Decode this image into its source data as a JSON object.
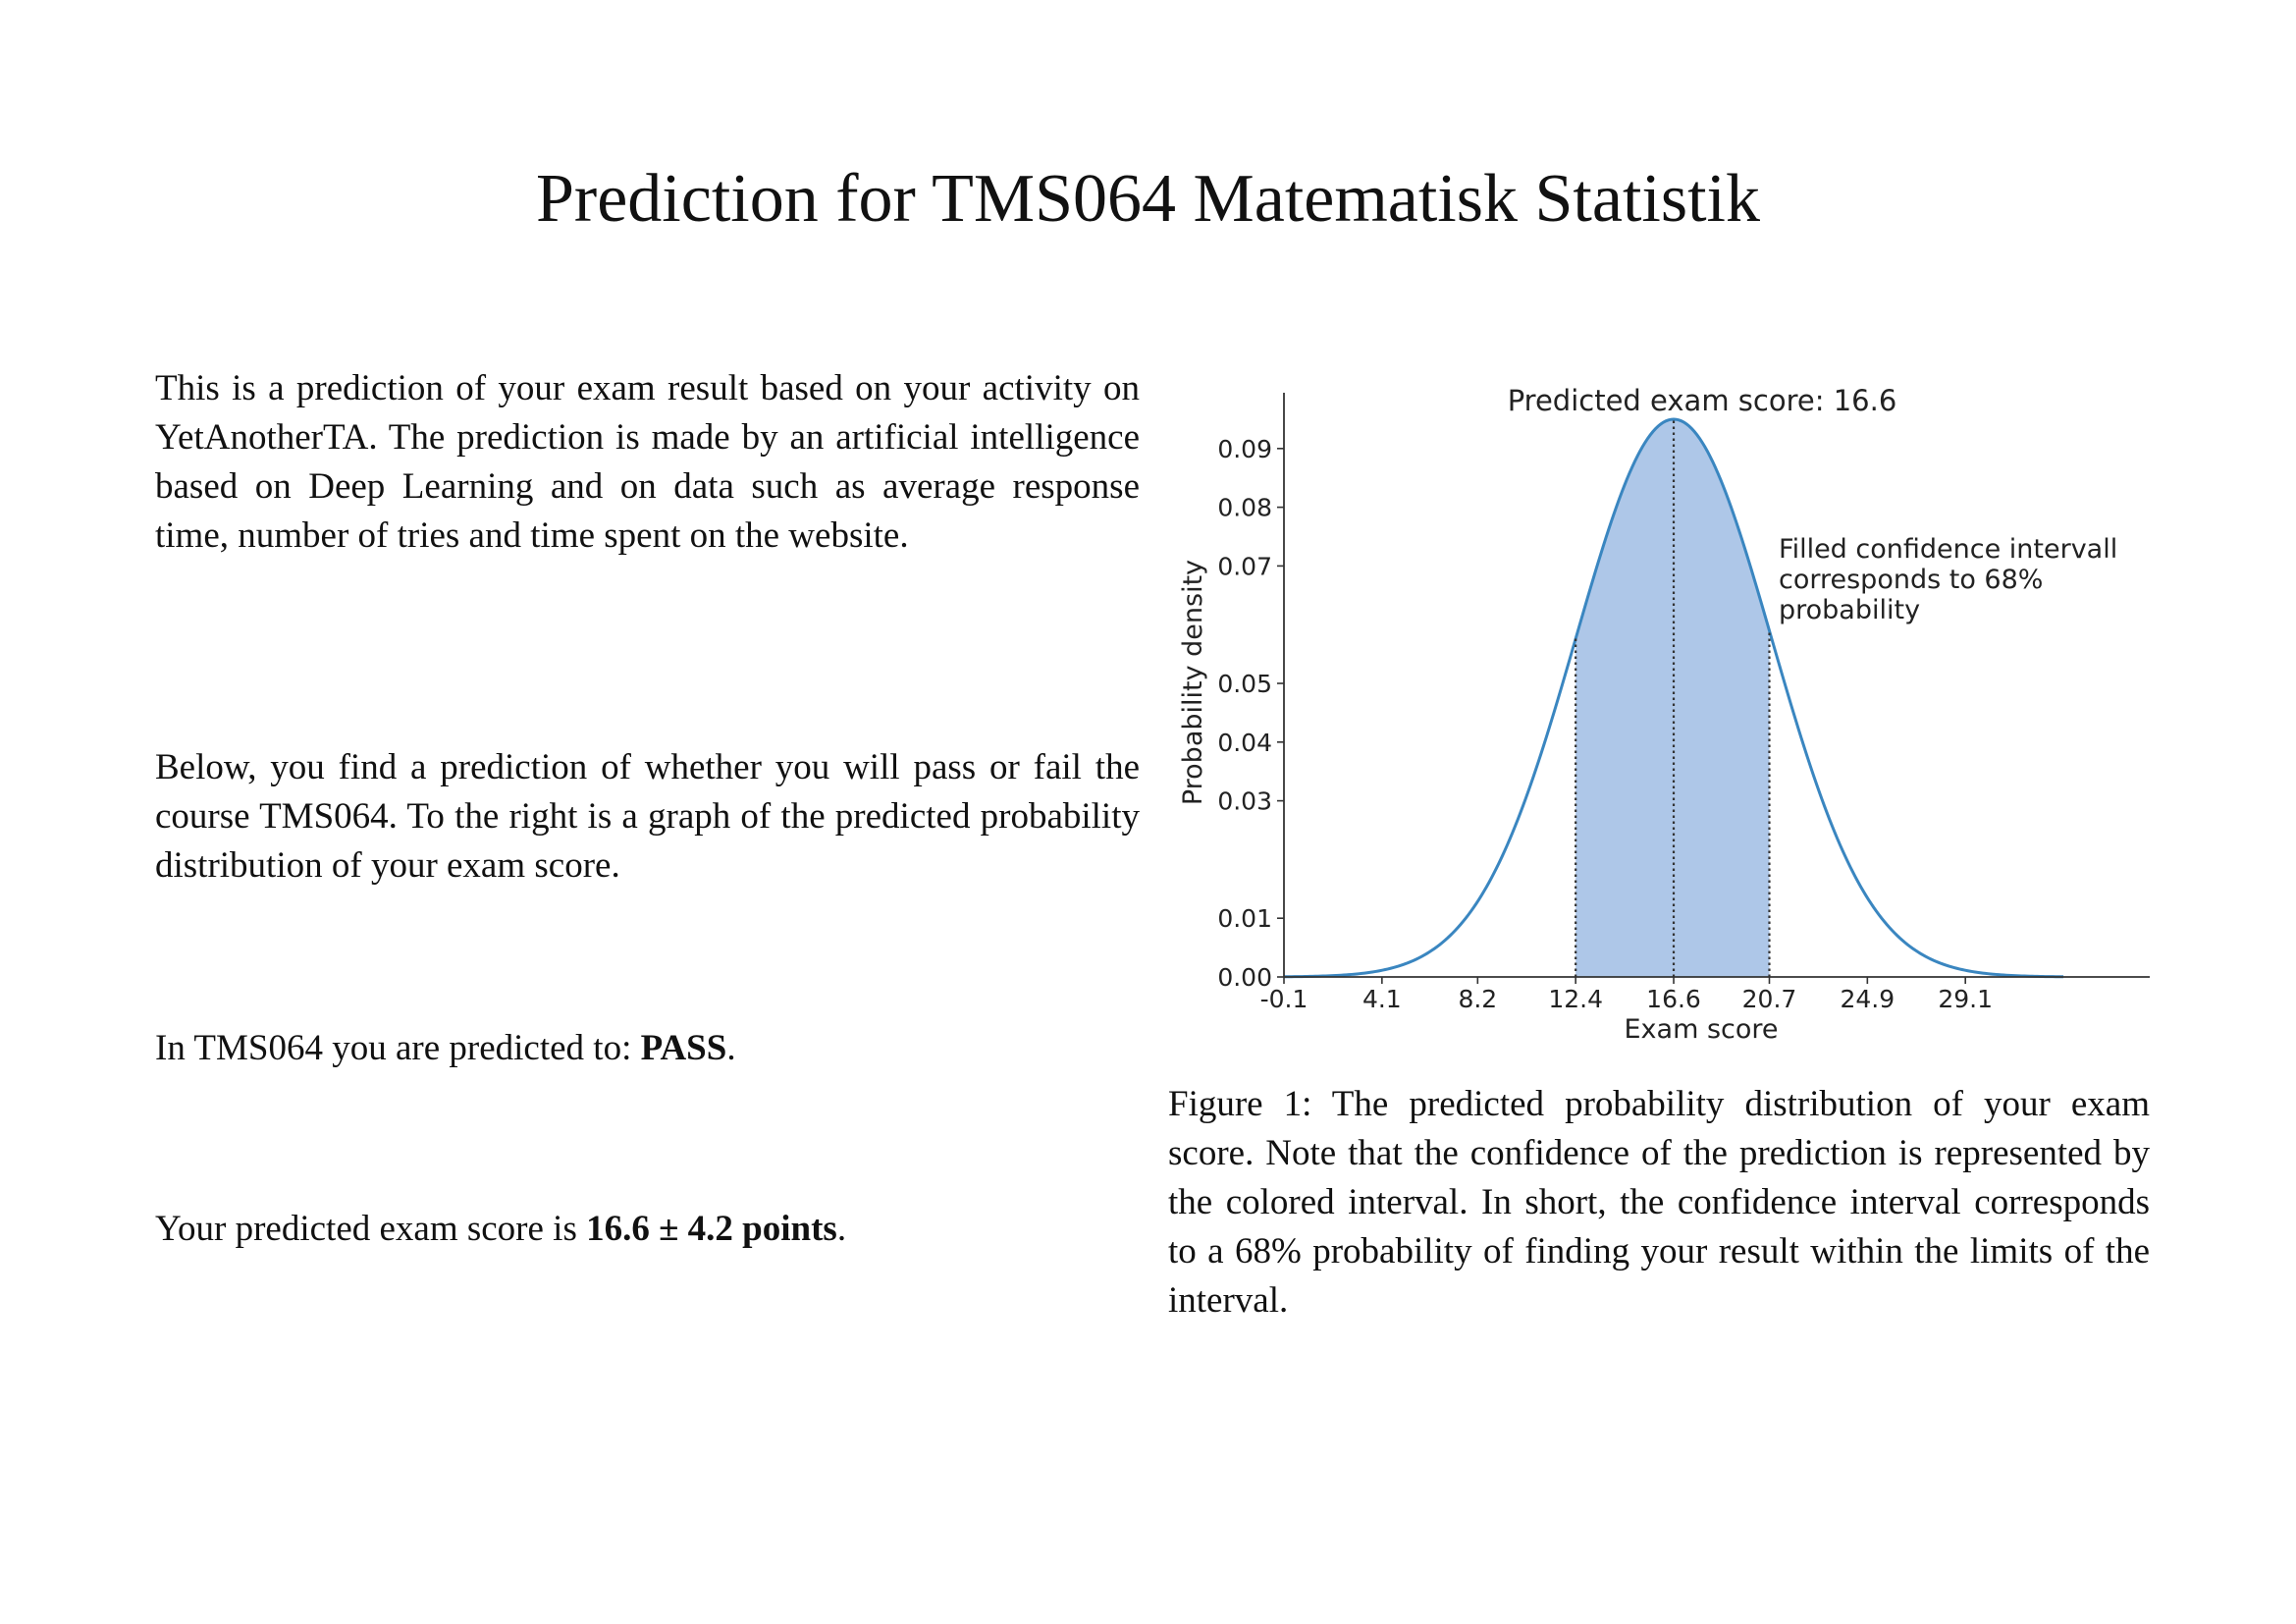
{
  "document": {
    "title": "Prediction for TMS064 Matematisk Statistik",
    "intro_paragraph": "This is a prediction of your exam result based on your activity on YetAnotherTA. The prediction is made by an artificial intelligence based on Deep Learning and on data such as average response time, number of tries and time spent on the website.",
    "below_paragraph": "Below, you find a prediction of whether you will pass or fail the course TMS064. To the right is a graph of the predicted probability distribution of your exam score.",
    "pass_prefix": "In TMS064 you are predicted to: ",
    "pass_value": "PASS",
    "pass_suffix": ".",
    "score_prefix": "Your predicted exam score is ",
    "score_value": "16.6 ± 4.2 points",
    "score_suffix": ".",
    "caption": "Figure 1: The predicted probability distribution of your exam score. Note that the confidence of the prediction is represented by the colored interval. In short, the confidence interval corresponds to a 68% probability of finding your result within the limits of the interval."
  },
  "chart_data": {
    "type": "area",
    "title": "Predicted exam score: 16.6",
    "xlabel": "Exam score",
    "ylabel": "Probability density",
    "mean": 16.6,
    "std": 4.2,
    "interval": [
      12.4,
      20.7
    ],
    "curve_range": [
      -0.1,
      33.3
    ],
    "xlim": [
      -0.1,
      37.0
    ],
    "ylim": [
      0.0,
      0.1
    ],
    "x_ticks": [
      "-0.1",
      "4.1",
      "8.2",
      "12.4",
      "16.6",
      "20.7",
      "24.9",
      "29.1"
    ],
    "x_tick_values": [
      -0.1,
      4.1,
      8.2,
      12.4,
      16.6,
      20.7,
      24.9,
      29.1
    ],
    "y_ticks": [
      "0.00",
      "0.01",
      "0.03",
      "0.04",
      "0.05",
      "0.07",
      "0.08",
      "0.09"
    ],
    "y_tick_values": [
      0.0,
      0.01,
      0.03,
      0.04,
      0.05,
      0.07,
      0.08,
      0.09
    ],
    "annotation": [
      "Filled confidence intervall",
      "corresponds to 68%",
      "probability"
    ],
    "colors": {
      "line": "#3a86c0",
      "fill": "#aec7e8",
      "axis": "#333333",
      "vlines": "#333333"
    },
    "grid": false
  }
}
